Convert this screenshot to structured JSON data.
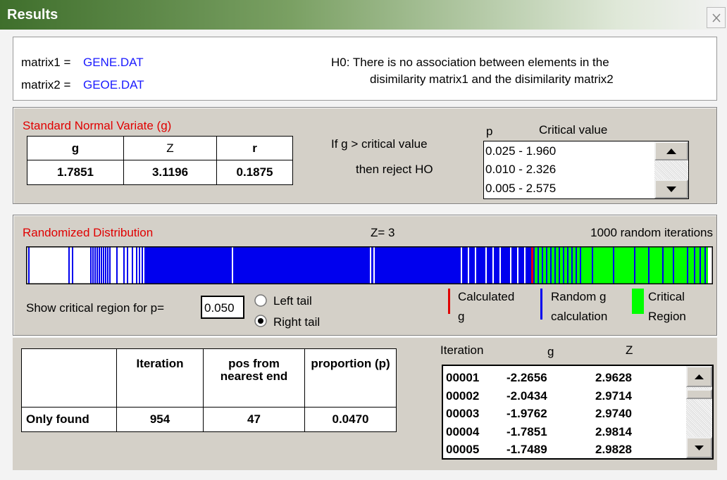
{
  "title_bar": {
    "title": "Results"
  },
  "info": {
    "matrix1_label": "matrix1 =",
    "matrix1_file": "GENE.DAT",
    "matrix2_label": "matrix2 =",
    "matrix2_file": "GEOE.DAT",
    "hypothesis": [
      "H0: There is no association between elements in the",
      "disimilarity matrix1 and the disimilarity matrix2"
    ]
  },
  "normal_variate": {
    "label": "Standard Normal Variate (g)",
    "table": {
      "headers": [
        "g",
        "Z",
        "r"
      ],
      "values": [
        "1.7851",
        "3.1196",
        "0.1875"
      ]
    },
    "rule": [
      "If g > critical value",
      "then reject HO"
    ],
    "critical_list": {
      "headers": [
        "p",
        "Critical value"
      ],
      "items": [
        "0.025 - 1.960",
        "0.010 - 2.326",
        "0.005 - 2.575"
      ]
    }
  },
  "randomized": {
    "label": "Randomized Distribution",
    "z": "Z= 3",
    "iterations": "1000 random iterations",
    "critical_prompt": "Show critical region for p=",
    "p_input": "0.050",
    "tails": [
      "Left tail",
      "Right tail"
    ],
    "legend": [
      [
        "Calculated",
        "g"
      ],
      [
        "Random g",
        "calculation"
      ],
      [
        "Critical",
        "Region"
      ]
    ]
  },
  "results_table": {
    "headers": [
      "Iteration",
      "pos from nearest end",
      "proportion (p)"
    ],
    "row": {
      "label": "Only found",
      "values": [
        "954",
        "47",
        "0.0470"
      ]
    }
  },
  "iteration_list": {
    "headers": [
      "Iteration",
      "g",
      "Z"
    ],
    "rows": [
      [
        "00001",
        "-2.2656",
        "2.9628"
      ],
      [
        "00002",
        "-2.0434",
        "2.9714"
      ],
      [
        "00003",
        "-1.9762",
        "2.9740"
      ],
      [
        "00004",
        "-1.7851",
        "2.9814"
      ],
      [
        "00005",
        "-1.7489",
        "2.9828"
      ]
    ]
  }
}
